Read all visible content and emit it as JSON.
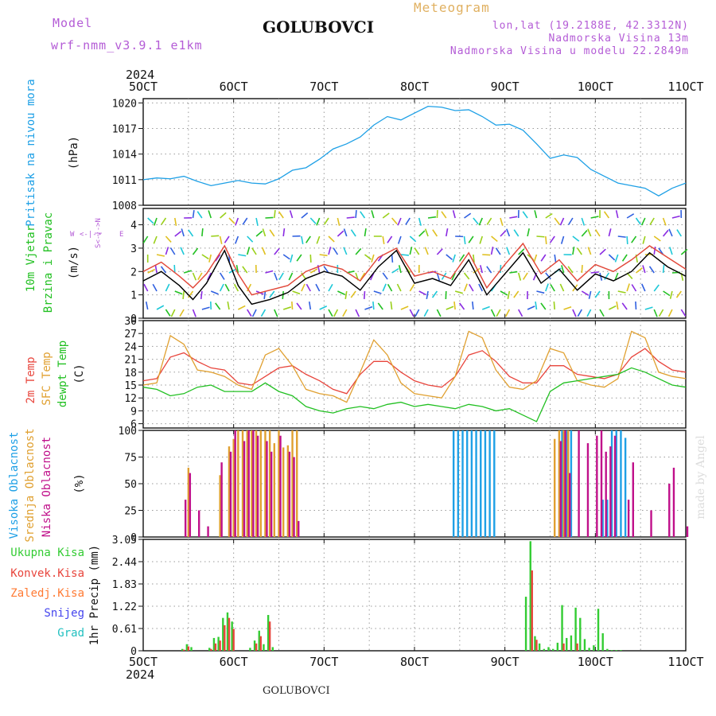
{
  "header": {
    "model_label": "Model",
    "model_value": "wrf-nmm_v3.9.1 e1km",
    "station_title": "GOLUBOVCI",
    "meteogram_label": "Meteogram",
    "lonlat": "lon,lat (19.2188E, 42.3312N)",
    "altitude": "Nadmorska Visina 13m",
    "model_altitude": "Nadmorska Visina u modelu 22.2849m"
  },
  "footer": {
    "station": "GOLUBOVCI",
    "credit": "made by Angel"
  },
  "colors": {
    "pressure": "#1ea0e6",
    "wind_black": "#000000",
    "wind_gust": "#e24a3c",
    "temp_2m": "#e8453c",
    "temp_sfc": "#e0a030",
    "dewpoint": "#22c022",
    "cloud_high": "#1ea0e6",
    "cloud_mid": "#e0a030",
    "cloud_low": "#c0108a",
    "precip_total": "#33cc33",
    "precip_conv": "#e8453c",
    "precip_frozen": "#ff7a33",
    "snow": "#4444ee",
    "graupel": "#22c0c0",
    "grid": "#9a9a9a"
  },
  "chart_data": [
    {
      "type": "line",
      "panel": "pressure",
      "ylabel_rotated": "Pritisak na nivou mora",
      "unit": "(hPa)",
      "x_ticks": [
        "5OCT",
        "6OCT",
        "7OCT",
        "8OCT",
        "9OCT",
        "10OCT",
        "11OCT"
      ],
      "x_year": "2024",
      "ylim": [
        1008,
        1020.5
      ],
      "y_ticks": [
        1008,
        1011,
        1014,
        1017,
        1020
      ],
      "grid": true,
      "series": [
        {
          "color": "#1ea0e6",
          "x": [
            0,
            0.15,
            0.3,
            0.45,
            0.6,
            0.75,
            0.9,
            1.05,
            1.2,
            1.35,
            1.5,
            1.65,
            1.8,
            1.95,
            2.1,
            2.25,
            2.4,
            2.55,
            2.7,
            2.85,
            3.0,
            3.15,
            3.3,
            3.45,
            3.6,
            3.75,
            3.9,
            4.05,
            4.2,
            4.35,
            4.5,
            4.65,
            4.8,
            4.95,
            5.1,
            5.25,
            5.4,
            5.55,
            5.7,
            5.85,
            6.0
          ],
          "values": [
            1011,
            1011.2,
            1011.1,
            1011.4,
            1010.8,
            1010.3,
            1010.6,
            1010.9,
            1010.6,
            1010.5,
            1011.1,
            1012.1,
            1012.4,
            1013.4,
            1014.6,
            1015.2,
            1016,
            1017.4,
            1018.4,
            1018,
            1018.8,
            1019.6,
            1019.5,
            1019.1,
            1019.2,
            1018.4,
            1017.4,
            1017.5,
            1016.8,
            1015.2,
            1013.5,
            1013.9,
            1013.6,
            1012.2,
            1011.4,
            1010.6,
            1010.3,
            1010.0,
            1009.1,
            1010,
            1010.6
          ]
        }
      ]
    },
    {
      "type": "line",
      "panel": "wind",
      "ylabel_rotated": "10m Vjetar Brzina i Pravac",
      "ylabel_line1": "10m Vjetar",
      "ylabel_line2": "Brzina i Pravac",
      "unit": "(m/s)",
      "compass_legend": "W <-|-> E ; S <-|-> N",
      "compass_w": "W",
      "compass_e": "E",
      "compass_arrow_h": "<-|->",
      "compass_arrow_v": "S<-|->N",
      "ylim": [
        0,
        4.7
      ],
      "y_ticks": [
        0,
        1,
        2,
        3,
        4
      ],
      "grid": true,
      "series": [
        {
          "name_color": "#000000",
          "x": [
            0,
            0.2,
            0.4,
            0.55,
            0.7,
            0.9,
            1.05,
            1.2,
            1.4,
            1.6,
            1.8,
            2.0,
            2.2,
            2.4,
            2.6,
            2.8,
            3.0,
            3.2,
            3.4,
            3.6,
            3.8,
            4.0,
            4.2,
            4.4,
            4.6,
            4.8,
            5.0,
            5.2,
            5.4,
            5.6,
            5.8,
            6.0
          ],
          "values": [
            1.6,
            2.0,
            1.4,
            0.8,
            1.5,
            2.9,
            1.4,
            0.6,
            0.8,
            1.1,
            1.7,
            2.0,
            1.8,
            1.2,
            2.2,
            2.9,
            1.5,
            1.7,
            1.4,
            2.5,
            1.0,
            1.9,
            2.8,
            1.5,
            2.1,
            1.2,
            1.9,
            1.6,
            2.0,
            2.8,
            2.2,
            1.8
          ]
        },
        {
          "name_color": "#e24a3c",
          "x": [
            0,
            0.2,
            0.4,
            0.55,
            0.7,
            0.9,
            1.05,
            1.2,
            1.4,
            1.6,
            1.8,
            2.0,
            2.2,
            2.4,
            2.6,
            2.8,
            3.0,
            3.2,
            3.4,
            3.6,
            3.8,
            4.0,
            4.2,
            4.4,
            4.6,
            4.8,
            5.0,
            5.2,
            5.4,
            5.6,
            5.8,
            6.0
          ],
          "values": [
            2.0,
            2.4,
            1.8,
            1.3,
            1.9,
            3.1,
            1.9,
            1.0,
            1.2,
            1.4,
            2.0,
            2.3,
            2.1,
            1.6,
            2.6,
            3.0,
            1.8,
            2.0,
            1.7,
            2.8,
            1.3,
            2.3,
            3.2,
            1.9,
            2.5,
            1.6,
            2.3,
            2.0,
            2.5,
            3.1,
            2.6,
            2.1
          ]
        }
      ]
    },
    {
      "type": "line",
      "panel": "temperature",
      "ylabel_line1": "2m Temp",
      "ylabel_line2": "SFC Temp",
      "ylabel_line3": "dewpt Temp",
      "unit": "(C)",
      "ylim": [
        5,
        30
      ],
      "y_ticks": [
        6,
        9,
        12,
        15,
        18,
        21,
        24,
        27,
        30
      ],
      "grid": true,
      "series": [
        {
          "name": "2m Temp",
          "color": "#e8453c",
          "x": [
            0,
            0.15,
            0.3,
            0.45,
            0.6,
            0.75,
            0.9,
            1.05,
            1.2,
            1.35,
            1.5,
            1.65,
            1.8,
            1.95,
            2.1,
            2.25,
            2.4,
            2.55,
            2.7,
            2.85,
            3.0,
            3.15,
            3.3,
            3.45,
            3.6,
            3.75,
            3.9,
            4.05,
            4.2,
            4.35,
            4.5,
            4.65,
            4.8,
            4.95,
            5.1,
            5.25,
            5.4,
            5.55,
            5.7,
            5.85,
            6.0
          ],
          "values": [
            16,
            16.5,
            21.5,
            22.5,
            20.5,
            19,
            18.5,
            15.5,
            15,
            17,
            19,
            19.5,
            17.5,
            16,
            14,
            13,
            17.5,
            20.5,
            20.5,
            18,
            16,
            15,
            14.5,
            17,
            22,
            23,
            20.5,
            17,
            15.5,
            15.5,
            19.5,
            19.5,
            17.5,
            17,
            16.5,
            17.5,
            21.5,
            23.5,
            20.5,
            18.5,
            18
          ]
        },
        {
          "name": "SFC Temp",
          "color": "#e0a030",
          "x": [
            0,
            0.15,
            0.3,
            0.45,
            0.6,
            0.75,
            0.9,
            1.05,
            1.2,
            1.35,
            1.5,
            1.65,
            1.8,
            1.95,
            2.1,
            2.25,
            2.4,
            2.55,
            2.7,
            2.85,
            3.0,
            3.15,
            3.3,
            3.45,
            3.6,
            3.75,
            3.9,
            4.05,
            4.2,
            4.35,
            4.5,
            4.65,
            4.8,
            4.95,
            5.1,
            5.25,
            5.4,
            5.55,
            5.7,
            5.85,
            6.0
          ],
          "values": [
            15,
            15.5,
            26.5,
            24.5,
            18.5,
            18,
            17,
            15,
            14,
            22,
            23.5,
            19.5,
            14,
            13,
            12.5,
            11,
            18,
            25.5,
            22,
            15.5,
            13,
            12.5,
            12,
            17,
            27.5,
            26,
            18.5,
            14.5,
            14,
            16,
            23.5,
            22.5,
            16,
            15,
            14.5,
            16.5,
            27.5,
            26,
            18,
            17,
            16.5
          ]
        },
        {
          "name": "dewpt Temp",
          "color": "#22c022",
          "x": [
            0,
            0.15,
            0.3,
            0.45,
            0.6,
            0.75,
            0.9,
            1.05,
            1.2,
            1.35,
            1.5,
            1.65,
            1.8,
            1.95,
            2.1,
            2.25,
            2.4,
            2.55,
            2.7,
            2.85,
            3.0,
            3.15,
            3.3,
            3.45,
            3.6,
            3.75,
            3.9,
            4.05,
            4.2,
            4.35,
            4.5,
            4.65,
            4.8,
            4.95,
            5.1,
            5.25,
            5.4,
            5.55,
            5.7,
            5.85,
            6.0
          ],
          "values": [
            14.5,
            14,
            12.5,
            13,
            14.5,
            15,
            13.5,
            13.5,
            13.5,
            15.5,
            13.5,
            12.5,
            10,
            9,
            8.5,
            9.5,
            10,
            9.5,
            10.5,
            11,
            10,
            10.5,
            10,
            9.5,
            10.5,
            10,
            9,
            9.5,
            8,
            6.5,
            13.5,
            15.5,
            16,
            16.5,
            17,
            17.5,
            19,
            18,
            16.5,
            15,
            14.5
          ]
        }
      ]
    },
    {
      "type": "bar",
      "panel": "cloudiness",
      "ylabel_line1": "Visoka Oblacnost",
      "ylabel_line2": "Srednja Oblacnost",
      "ylabel_line3": "Niska Oblacnost",
      "unit": "(%)",
      "ylim": [
        0,
        100
      ],
      "y_ticks": [
        0,
        25,
        50,
        75,
        100
      ],
      "grid": true,
      "series": [
        {
          "name": "Visoka Oblacnost",
          "color": "#1ea0e6",
          "x": [
            3.45,
            3.5,
            3.55,
            3.6,
            3.65,
            3.7,
            3.75,
            3.8,
            3.85,
            3.9,
            3.95,
            4.0,
            4.05,
            4.1,
            4.15,
            4.2,
            4.25,
            4.3,
            4.35,
            4.4,
            4.45,
            4.5,
            4.55,
            4.6,
            4.65,
            4.7,
            4.75,
            4.8,
            4.85,
            4.9,
            4.95,
            5.0,
            5.05,
            5.1,
            5.15,
            5.2,
            5.25,
            5.3,
            5.35,
            5.4,
            5.45
          ],
          "values": [
            100,
            100,
            100,
            100,
            100,
            100,
            100,
            100,
            100,
            100,
            0,
            0,
            0,
            0,
            0,
            0,
            0,
            0,
            0,
            0,
            0,
            0,
            0,
            0,
            100,
            100,
            100,
            0,
            0,
            0,
            0,
            0,
            0,
            35,
            35,
            100,
            100,
            100,
            93,
            0,
            0
          ]
        },
        {
          "name": "Srednja Oblacnost",
          "color": "#e0a030",
          "x": [
            0.45,
            0.5,
            0.55,
            0.6,
            0.65,
            0.7,
            0.75,
            0.8,
            0.85,
            0.9,
            0.95,
            1.0,
            1.05,
            1.1,
            1.15,
            1.2,
            1.25,
            1.3,
            1.35,
            1.4,
            1.45,
            1.5,
            1.55,
            1.6,
            1.65,
            1.7,
            4.55,
            4.6,
            4.65,
            4.7,
            4.75,
            4.8,
            4.85,
            4.9,
            4.95,
            5.0
          ],
          "values": [
            0,
            65,
            0,
            0,
            0,
            0,
            0,
            0,
            58,
            0,
            85,
            92,
            100,
            100,
            100,
            100,
            100,
            100,
            100,
            100,
            88,
            100,
            84,
            86,
            100,
            100,
            92,
            100,
            100,
            100,
            0,
            0,
            0,
            0,
            0,
            0
          ]
        },
        {
          "name": "Niska Oblacnost",
          "color": "#c0108a",
          "x": [
            0.45,
            0.5,
            0.55,
            0.6,
            0.7,
            0.8,
            0.85,
            0.9,
            0.95,
            1.0,
            1.05,
            1.1,
            1.15,
            1.2,
            1.25,
            1.3,
            1.35,
            1.4,
            1.45,
            1.5,
            1.55,
            1.6,
            1.65,
            1.7,
            4.6,
            4.65,
            4.7,
            4.8,
            4.9,
            5.0,
            5.05,
            5.1,
            5.15,
            5.2,
            5.25,
            5.3,
            5.35,
            5.4,
            5.6,
            5.8,
            5.85,
            6.0
          ],
          "values": [
            35,
            60,
            0,
            25,
            10,
            0,
            70,
            0,
            80,
            100,
            0,
            90,
            100,
            100,
            95,
            0,
            90,
            80,
            0,
            95,
            0,
            80,
            75,
            15,
            90,
            100,
            60,
            100,
            88,
            95,
            100,
            80,
            85,
            95,
            0,
            0,
            35,
            70,
            25,
            50,
            65,
            10
          ]
        }
      ]
    },
    {
      "type": "bar",
      "panel": "precipitation",
      "legend": [
        "Ukupna Kisa",
        "Konvek.Kisa",
        "Zaledj.Kisa",
        "Snijeg",
        "Grad"
      ],
      "unit": "1hr Precip (mm)",
      "ylim": [
        0,
        3.05
      ],
      "y_ticks": [
        0,
        0.61,
        1.22,
        1.83,
        2.44,
        3.05
      ],
      "grid": true,
      "series": [
        {
          "name": "Ukupna Kisa",
          "color": "#33cc33",
          "x": [
            0.45,
            0.5,
            0.55,
            0.75,
            0.8,
            0.85,
            0.9,
            0.95,
            1.0,
            1.2,
            1.25,
            1.3,
            1.35,
            1.4,
            1.45,
            4.25,
            4.3,
            4.35,
            4.4,
            4.45,
            4.5,
            4.55,
            4.6,
            4.65,
            4.7,
            4.75,
            4.8,
            4.85,
            4.9,
            4.95,
            5.0,
            5.05,
            5.1,
            5.15,
            5.2,
            5.25,
            5.3
          ],
          "values": [
            0.05,
            0.18,
            0.1,
            0.08,
            0.35,
            0.38,
            0.9,
            1.05,
            0.8,
            0.08,
            0.28,
            0.55,
            0.18,
            0.98,
            0.1,
            1.48,
            3.0,
            0.4,
            0.2,
            0.05,
            0.1,
            0.05,
            0.22,
            1.25,
            0.35,
            0.42,
            1.18,
            0.9,
            0.32,
            0.08,
            0.15,
            1.15,
            0.48,
            0.05,
            0.02,
            0.02,
            0.02
          ]
        },
        {
          "name": "Konvek.Kisa",
          "color": "#e8453c",
          "x": [
            0.45,
            0.5,
            0.75,
            0.8,
            0.85,
            0.9,
            0.95,
            1.0,
            1.25,
            1.3,
            1.4,
            4.3,
            4.35,
            4.65,
            4.8
          ],
          "values": [
            0.03,
            0.12,
            0.05,
            0.2,
            0.28,
            0.7,
            0.9,
            0.6,
            0.2,
            0.4,
            0.8,
            2.2,
            0.3,
            0.2,
            0.2
          ]
        }
      ]
    }
  ]
}
